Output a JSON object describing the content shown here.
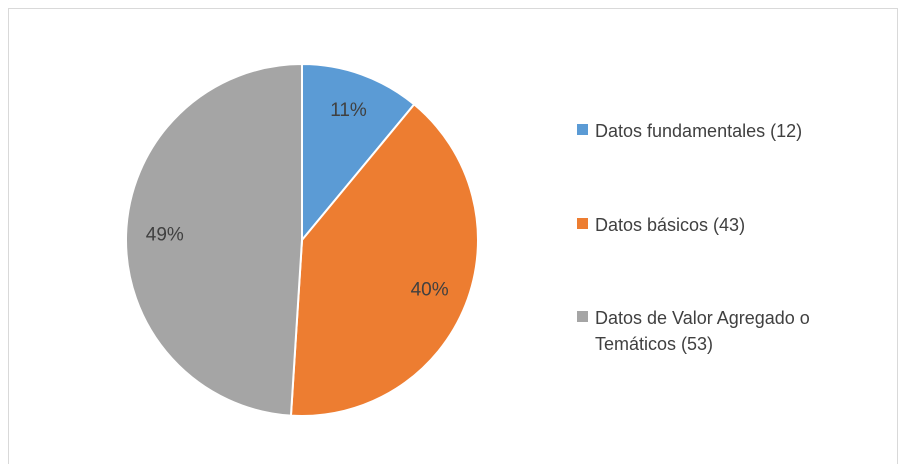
{
  "chart_data": {
    "type": "pie",
    "categories": [
      "Datos fundamentales (12)",
      "Datos básicos (43)",
      "Datos de Valor Agregado o Temáticos (53)"
    ],
    "values": [
      11,
      40,
      49
    ],
    "value_labels": [
      "11%",
      "40%",
      "49%"
    ],
    "colors": [
      "#5b9bd5",
      "#ed7d31",
      "#a5a5a5"
    ],
    "legend": "right"
  }
}
